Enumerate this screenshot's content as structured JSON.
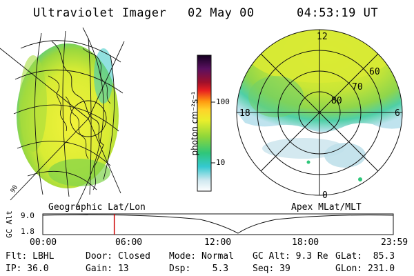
{
  "header": {
    "instrument": "Ultraviolet Imager",
    "date": "02 May 00",
    "time": "04:53:19 UT"
  },
  "colorbar": {
    "unit_label": "photon cm⁻²s⁻¹",
    "ticks": [
      "100",
      "10"
    ]
  },
  "polar_plot": {
    "mlat_labels": [
      "80",
      "70",
      "60"
    ],
    "mlt_labels": [
      "12",
      "18",
      "6",
      "0"
    ]
  },
  "panels": {
    "left_label": "Geographic Lat/Lon",
    "right_label": "Apex MLat/MLT"
  },
  "altitude_plot": {
    "y_label": "GC Alt",
    "y_ticks": [
      "9.0",
      "1.8"
    ],
    "x_ticks": [
      "00:00",
      "06:00",
      "12:00",
      "18:00",
      "23:59"
    ],
    "current_time_fraction": 0.204,
    "marker_color": "#cc0000"
  },
  "footer": {
    "filter": "Flt: LBHL",
    "ip": "IP: 36.0",
    "door": "Door: Closed",
    "gain": "Gain: 13",
    "mode": "Mode: Normal",
    "dsp": "Dsp:    5.3",
    "gc_alt": "GC Alt: 9.3 Re",
    "seq": "Seq: 39",
    "glat": "GLat:  85.3",
    "glon": "GLon: 231.0"
  }
}
